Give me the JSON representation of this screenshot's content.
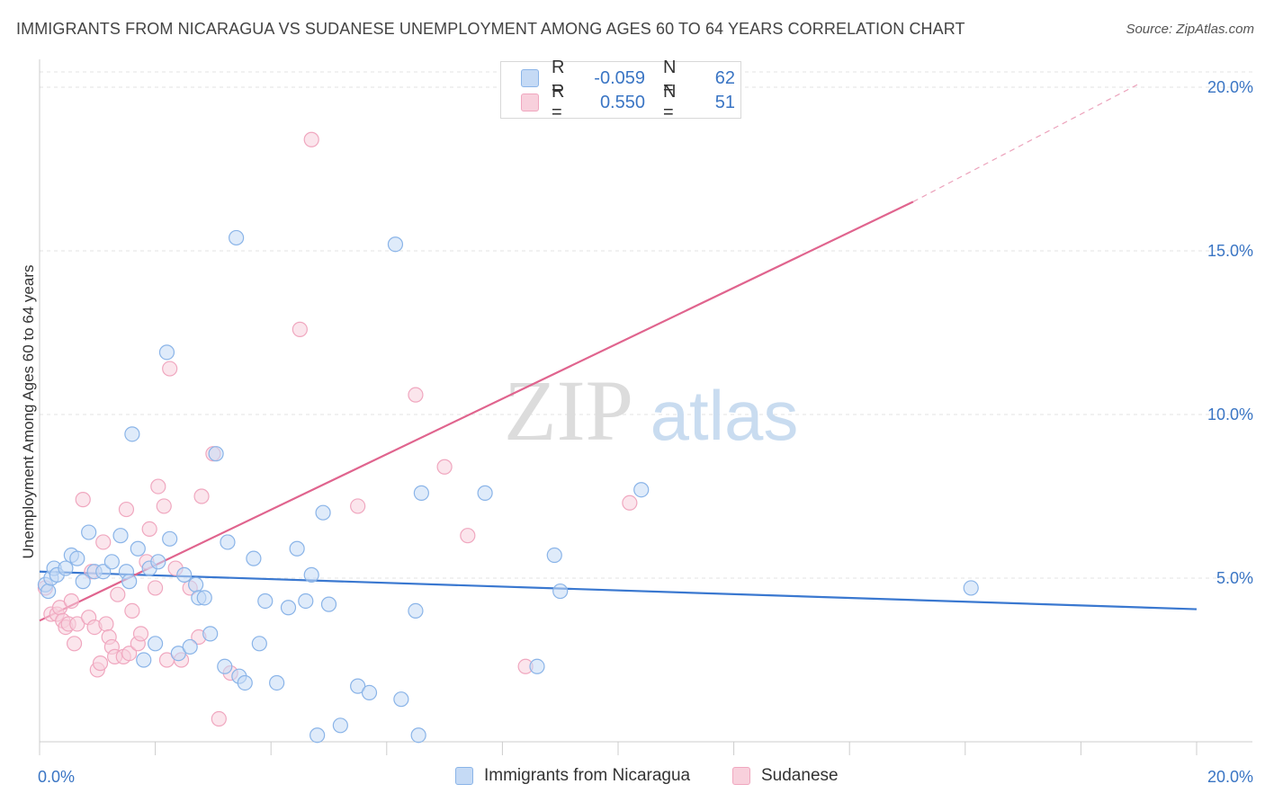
{
  "header": {
    "title": "IMMIGRANTS FROM NICARAGUA VS SUDANESE UNEMPLOYMENT AMONG AGES 60 TO 64 YEARS CORRELATION CHART",
    "source": "Source: ZipAtlas.com"
  },
  "legend": {
    "rows": [
      {
        "r_label": "R =",
        "r_value": "-0.059",
        "n_label": "N =",
        "n_value": "62"
      },
      {
        "r_label": "R =",
        "r_value": "0.550",
        "n_label": "N =",
        "n_value": "51"
      }
    ]
  },
  "colors": {
    "blue": "#8ab4e8",
    "blue_fill": "#c5daf5",
    "blue_line": "#3a78d0",
    "pink": "#f0a7bf",
    "pink_fill": "#f8d0dc",
    "pink_line": "#e0648e",
    "grid": "#e3e3e3",
    "tick_text": "#3a75c4"
  },
  "watermark": {
    "zip": "ZIP",
    "atlas": "atlas"
  },
  "chart_data": {
    "type": "scatter",
    "title": "IMMIGRANTS FROM NICARAGUA VS SUDANESE UNEMPLOYMENT AMONG AGES 60 TO 64 YEARS CORRELATION CHART",
    "xlabel": "",
    "ylabel": "Unemployment Among Ages 60 to 64 years",
    "xlim": [
      0,
      20
    ],
    "ylim": [
      0,
      20
    ],
    "x_tick_labels": [
      {
        "value": 0,
        "label": "0.0%"
      },
      {
        "value": 20,
        "label": "20.0%"
      }
    ],
    "y_tick_labels": [
      {
        "value": 5,
        "label": "5.0%"
      },
      {
        "value": 10,
        "label": "10.0%"
      },
      {
        "value": 15,
        "label": "15.0%"
      },
      {
        "value": 20,
        "label": "20.0%"
      }
    ],
    "series": [
      {
        "name": "Immigrants from Nicaragua",
        "color": "#8ab4e8",
        "points": [
          [
            0.1,
            4.8
          ],
          [
            0.15,
            4.6
          ],
          [
            0.2,
            5.0
          ],
          [
            0.25,
            5.3
          ],
          [
            0.3,
            5.1
          ],
          [
            0.45,
            5.3
          ],
          [
            0.55,
            5.7
          ],
          [
            0.65,
            5.6
          ],
          [
            0.75,
            4.9
          ],
          [
            0.85,
            6.4
          ],
          [
            0.95,
            5.2
          ],
          [
            1.1,
            5.2
          ],
          [
            1.25,
            5.5
          ],
          [
            1.4,
            6.3
          ],
          [
            1.5,
            5.2
          ],
          [
            1.55,
            4.9
          ],
          [
            1.6,
            9.4
          ],
          [
            1.7,
            5.9
          ],
          [
            1.8,
            2.5
          ],
          [
            1.9,
            5.3
          ],
          [
            2.0,
            3.0
          ],
          [
            2.05,
            5.5
          ],
          [
            2.2,
            11.9
          ],
          [
            2.25,
            6.2
          ],
          [
            2.4,
            2.7
          ],
          [
            2.5,
            5.1
          ],
          [
            2.6,
            2.9
          ],
          [
            2.7,
            4.8
          ],
          [
            2.75,
            4.4
          ],
          [
            2.85,
            4.4
          ],
          [
            2.95,
            3.3
          ],
          [
            3.05,
            8.8
          ],
          [
            3.2,
            2.3
          ],
          [
            3.25,
            6.1
          ],
          [
            3.4,
            15.4
          ],
          [
            3.45,
            2.0
          ],
          [
            3.55,
            1.8
          ],
          [
            3.7,
            5.6
          ],
          [
            3.8,
            3.0
          ],
          [
            3.9,
            4.3
          ],
          [
            4.1,
            1.8
          ],
          [
            4.3,
            4.1
          ],
          [
            4.45,
            5.9
          ],
          [
            4.6,
            4.3
          ],
          [
            4.7,
            5.1
          ],
          [
            4.8,
            0.2
          ],
          [
            4.9,
            7.0
          ],
          [
            5.0,
            4.2
          ],
          [
            5.2,
            0.5
          ],
          [
            5.5,
            1.7
          ],
          [
            5.7,
            1.5
          ],
          [
            6.15,
            15.2
          ],
          [
            6.25,
            1.3
          ],
          [
            6.5,
            4.0
          ],
          [
            6.55,
            0.2
          ],
          [
            6.6,
            7.6
          ],
          [
            7.7,
            7.6
          ],
          [
            8.6,
            2.3
          ],
          [
            8.9,
            5.7
          ],
          [
            9.0,
            4.6
          ],
          [
            10.4,
            7.7
          ],
          [
            16.1,
            4.7
          ]
        ],
        "trendline": {
          "x": [
            0,
            20
          ],
          "y": [
            5.2,
            4.05
          ]
        }
      },
      {
        "name": "Sudanese",
        "color": "#f0a7bf",
        "points": [
          [
            0.1,
            4.7
          ],
          [
            0.2,
            3.9
          ],
          [
            0.3,
            3.9
          ],
          [
            0.35,
            4.1
          ],
          [
            0.4,
            3.7
          ],
          [
            0.45,
            3.5
          ],
          [
            0.5,
            3.6
          ],
          [
            0.55,
            4.3
          ],
          [
            0.6,
            3.0
          ],
          [
            0.65,
            3.6
          ],
          [
            0.75,
            7.4
          ],
          [
            0.85,
            3.8
          ],
          [
            0.9,
            5.2
          ],
          [
            0.95,
            3.5
          ],
          [
            1.0,
            2.2
          ],
          [
            1.05,
            2.4
          ],
          [
            1.1,
            6.1
          ],
          [
            1.15,
            3.6
          ],
          [
            1.2,
            3.2
          ],
          [
            1.25,
            2.9
          ],
          [
            1.3,
            2.6
          ],
          [
            1.35,
            4.5
          ],
          [
            1.45,
            2.6
          ],
          [
            1.5,
            7.1
          ],
          [
            1.55,
            2.7
          ],
          [
            1.6,
            4.0
          ],
          [
            1.7,
            3.0
          ],
          [
            1.75,
            3.3
          ],
          [
            1.85,
            5.5
          ],
          [
            1.9,
            6.5
          ],
          [
            2.0,
            4.7
          ],
          [
            2.05,
            7.8
          ],
          [
            2.15,
            7.2
          ],
          [
            2.2,
            2.5
          ],
          [
            2.25,
            11.4
          ],
          [
            2.35,
            5.3
          ],
          [
            2.45,
            2.5
          ],
          [
            2.6,
            4.7
          ],
          [
            2.75,
            3.2
          ],
          [
            2.8,
            7.5
          ],
          [
            3.0,
            8.8
          ],
          [
            3.1,
            0.7
          ],
          [
            3.3,
            2.1
          ],
          [
            4.5,
            12.6
          ],
          [
            4.7,
            18.4
          ],
          [
            5.5,
            7.2
          ],
          [
            6.5,
            10.6
          ],
          [
            7.0,
            8.4
          ],
          [
            7.4,
            6.3
          ],
          [
            8.4,
            2.3
          ],
          [
            10.2,
            7.3
          ]
        ],
        "trendline": {
          "x": [
            0,
            15.1
          ],
          "y": [
            3.7,
            16.5
          ]
        },
        "trendline_extension": {
          "x": [
            15.1,
            19.0
          ],
          "y": [
            16.5,
            20.1
          ]
        }
      }
    ],
    "legend_position": "top-center",
    "grid": true
  },
  "bottom_legend": {
    "items": [
      {
        "label": "Immigrants from Nicaragua"
      },
      {
        "label": "Sudanese"
      }
    ]
  }
}
